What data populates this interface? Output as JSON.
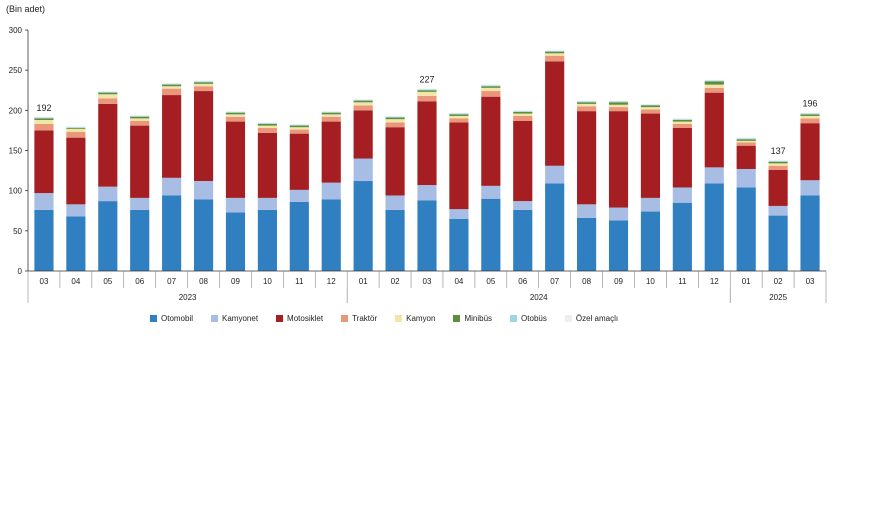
{
  "unit_label": "(Bin adet)",
  "colors": {
    "Otomobil": "#2f7fc1",
    "Kamyonet": "#a7bde3",
    "Motosiklet": "#a41e22",
    "Traktör": "#e9967a",
    "Kamyon": "#f3e5a7",
    "Minibüs": "#5c8f3c",
    "Otobüs": "#9fd3e6",
    "Özel amaçlı": "#eeeeee"
  },
  "chart_data": {
    "type": "bar",
    "stacked": true,
    "ylim": [
      0,
      300
    ],
    "yticks": [
      0,
      50,
      100,
      150,
      200,
      250,
      300
    ],
    "categories": [
      "03",
      "04",
      "05",
      "06",
      "07",
      "08",
      "09",
      "10",
      "11",
      "12",
      "01",
      "02",
      "03",
      "04",
      "05",
      "06",
      "07",
      "08",
      "09",
      "10",
      "11",
      "12",
      "01",
      "02",
      "03"
    ],
    "year_groups": [
      {
        "label": "2023",
        "start": 0,
        "end": 9
      },
      {
        "label": "2024",
        "start": 10,
        "end": 21
      },
      {
        "label": "2025",
        "start": 22,
        "end": 24
      }
    ],
    "series": [
      {
        "name": "Otomobil",
        "values": [
          76,
          68,
          87,
          76,
          94,
          89,
          73,
          76,
          86,
          89,
          112,
          76,
          88,
          65,
          90,
          76,
          109,
          66,
          63,
          74,
          85,
          109,
          104,
          69,
          94
        ]
      },
      {
        "name": "Kamyonet",
        "values": [
          21,
          15,
          18,
          15,
          22,
          23,
          18,
          15,
          15,
          21,
          28,
          18,
          19,
          12,
          16,
          11,
          22,
          17,
          16,
          17,
          19,
          20,
          23,
          12,
          19
        ]
      },
      {
        "name": "Motosiklet",
        "values": [
          78,
          83,
          103,
          90,
          103,
          112,
          95,
          81,
          70,
          76,
          60,
          85,
          104,
          108,
          111,
          100,
          130,
          116,
          120,
          105,
          74,
          93,
          29,
          45,
          71
        ]
      },
      {
        "name": "Traktör",
        "values": [
          8,
          7,
          7,
          6,
          8,
          6,
          6,
          6,
          5,
          6,
          6,
          6,
          7,
          5,
          7,
          6,
          7,
          6,
          5,
          5,
          5,
          6,
          4,
          5,
          6
        ]
      },
      {
        "name": "Kamyon",
        "values": [
          5,
          4,
          5,
          3,
          3,
          3,
          3,
          3,
          3,
          3,
          4,
          4,
          5,
          3,
          4,
          3,
          3,
          3,
          3,
          3,
          3,
          4,
          2,
          3,
          3
        ]
      },
      {
        "name": "Minibüs",
        "values": [
          2,
          1,
          2,
          2,
          2,
          2,
          2,
          2,
          2,
          2,
          2,
          2,
          2,
          2,
          2,
          2,
          2,
          2,
          3,
          2,
          2,
          4,
          2,
          2,
          2
        ]
      },
      {
        "name": "Otobüs",
        "values": [
          1,
          1,
          1,
          1,
          1,
          1,
          1,
          1,
          1,
          1,
          1,
          1,
          1,
          1,
          1,
          1,
          1,
          1,
          1,
          1,
          1,
          1,
          1,
          1,
          1
        ]
      },
      {
        "name": "Özel amaçlı",
        "values": [
          1,
          1,
          1,
          1,
          1,
          1,
          1,
          1,
          1,
          1,
          1,
          1,
          1,
          1,
          1,
          1,
          1,
          1,
          1,
          1,
          1,
          1,
          1,
          1,
          1
        ]
      }
    ],
    "annotations": [
      {
        "index": 0,
        "text": "192"
      },
      {
        "index": 12,
        "text": "227"
      },
      {
        "index": 23,
        "text": "137"
      },
      {
        "index": 24,
        "text": "196"
      }
    ],
    "legend_position": "bottom"
  }
}
